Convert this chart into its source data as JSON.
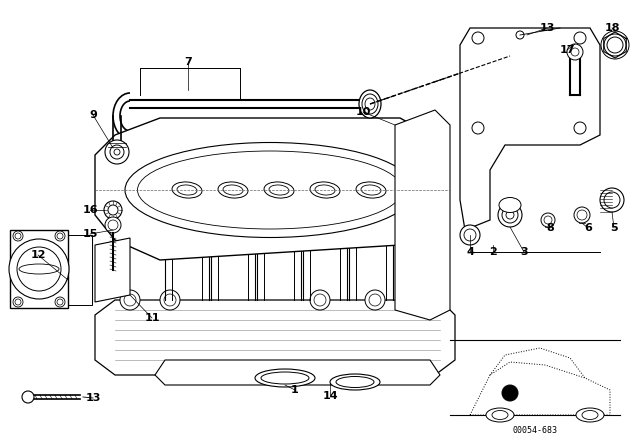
{
  "bg_color": "#ffffff",
  "line_color": "#000000",
  "diagram_number": "00054-683",
  "fig_width": 6.4,
  "fig_height": 4.48,
  "dpi": 100,
  "labels": [
    [
      295,
      390,
      "1"
    ],
    [
      493,
      252,
      "2"
    ],
    [
      524,
      252,
      "3"
    ],
    [
      470,
      252,
      "4"
    ],
    [
      614,
      228,
      "5"
    ],
    [
      588,
      228,
      "6"
    ],
    [
      188,
      62,
      "7"
    ],
    [
      550,
      228,
      "8"
    ],
    [
      93,
      115,
      "9"
    ],
    [
      363,
      112,
      "10"
    ],
    [
      152,
      318,
      "11"
    ],
    [
      38,
      255,
      "12"
    ],
    [
      547,
      28,
      "13"
    ],
    [
      93,
      398,
      "13"
    ],
    [
      330,
      396,
      "14"
    ],
    [
      90,
      234,
      "15"
    ],
    [
      90,
      210,
      "16"
    ],
    [
      567,
      50,
      "17"
    ],
    [
      612,
      28,
      "18"
    ]
  ]
}
